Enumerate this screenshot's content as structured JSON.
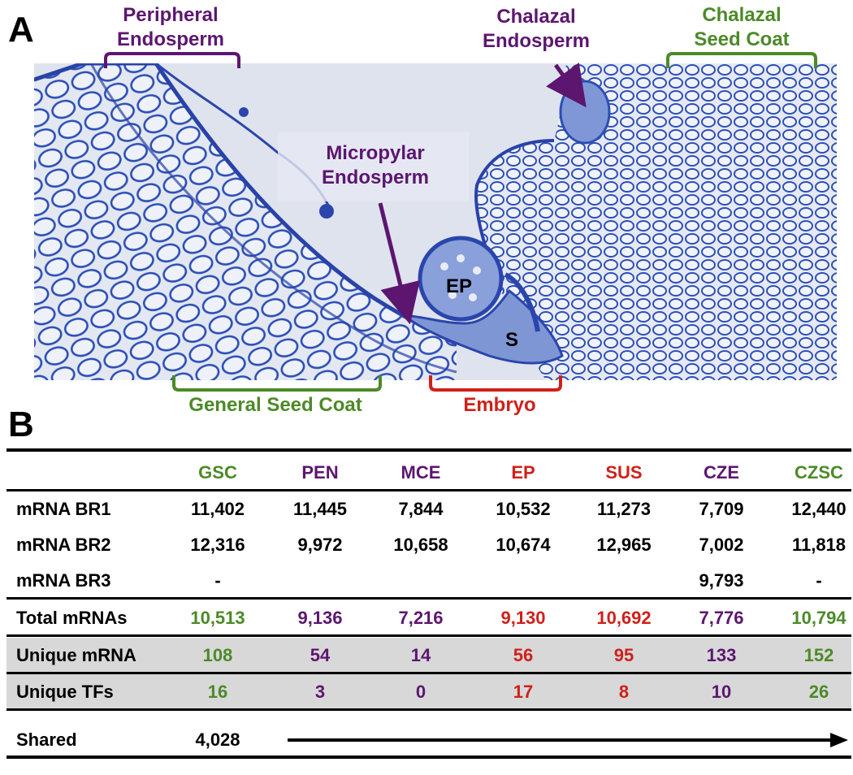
{
  "panels": {
    "a": "A",
    "b": "B"
  },
  "image_labels": {
    "peripheral_endosperm": [
      "Peripheral",
      "Endosperm"
    ],
    "chalazal_endosperm": [
      "Chalazal",
      "Endosperm"
    ],
    "chalazal_seed_coat": [
      "Chalazal",
      "Seed Coat"
    ],
    "micropylar_endosperm": [
      "Micropylar",
      "Endosperm"
    ],
    "ep": "EP",
    "s": "S",
    "general_seed_coat": "General Seed Coat",
    "embryo": "Embryo"
  },
  "colors": {
    "purple": "#5c1670",
    "green": "#4c8a28",
    "red": "#d0201a",
    "stain": "#2c4fb5",
    "background": "#dfe3ee"
  },
  "table": {
    "columns": [
      "GSC",
      "PEN",
      "MCE",
      "EP",
      "SUS",
      "CZE",
      "CZSC"
    ],
    "column_colors": [
      "green",
      "purple",
      "purple",
      "red",
      "red",
      "purple",
      "green"
    ],
    "rows": [
      {
        "label": "mRNA BR1",
        "values": [
          "11,402",
          "11,445",
          "7,844",
          "10,532",
          "11,273",
          "7,709",
          "12,440"
        ],
        "style": "plain"
      },
      {
        "label": "mRNA BR2",
        "values": [
          "12,316",
          "9,972",
          "10,658",
          "10,674",
          "12,965",
          "7,002",
          "11,818"
        ],
        "style": "plain"
      },
      {
        "label": "mRNA BR3",
        "values": [
          "-",
          "",
          "",
          "",
          "",
          "9,793",
          "-"
        ],
        "style": "plain"
      },
      {
        "label": "Total mRNAs",
        "values": [
          "10,513",
          "9,136",
          "7,216",
          "9,130",
          "10,692",
          "7,776",
          "10,794"
        ],
        "style": "colored"
      },
      {
        "label": "Unique mRNA",
        "values": [
          "108",
          "54",
          "14",
          "56",
          "95",
          "133",
          "152"
        ],
        "style": "colored-shaded"
      },
      {
        "label": "Unique TFs",
        "values": [
          "16",
          "3",
          "0",
          "17",
          "8",
          "10",
          "26"
        ],
        "style": "colored-shaded"
      }
    ],
    "shared": {
      "label": "Shared",
      "value": "4,028"
    }
  }
}
